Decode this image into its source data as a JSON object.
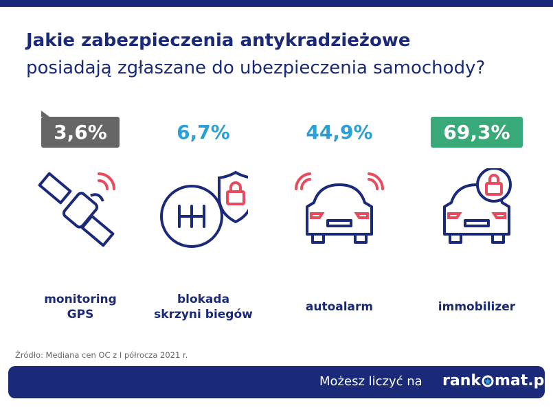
{
  "header": {
    "title": "Jakie zabezpieczenia antykradzieżowe",
    "subtitle": "posiadają zgłaszane do ubezpieczenia samochody?"
  },
  "items": [
    {
      "value": "3,6%",
      "label_lines": [
        "monitoring",
        "GPS"
      ]
    },
    {
      "value": "6,7%",
      "label_lines": [
        "blokada",
        "skrzyni biegów"
      ]
    },
    {
      "value": "44,9%",
      "label_lines": [
        "autoalarm"
      ]
    },
    {
      "value": "69,3%",
      "label_lines": [
        "immobilizer"
      ]
    }
  ],
  "source": "Źródło: Mediana cen OC z I półrocza 2021 r.",
  "footer": {
    "slogan": "Możesz liczyć na",
    "brand_start": "rank",
    "brand_end": "mat.pl"
  }
}
